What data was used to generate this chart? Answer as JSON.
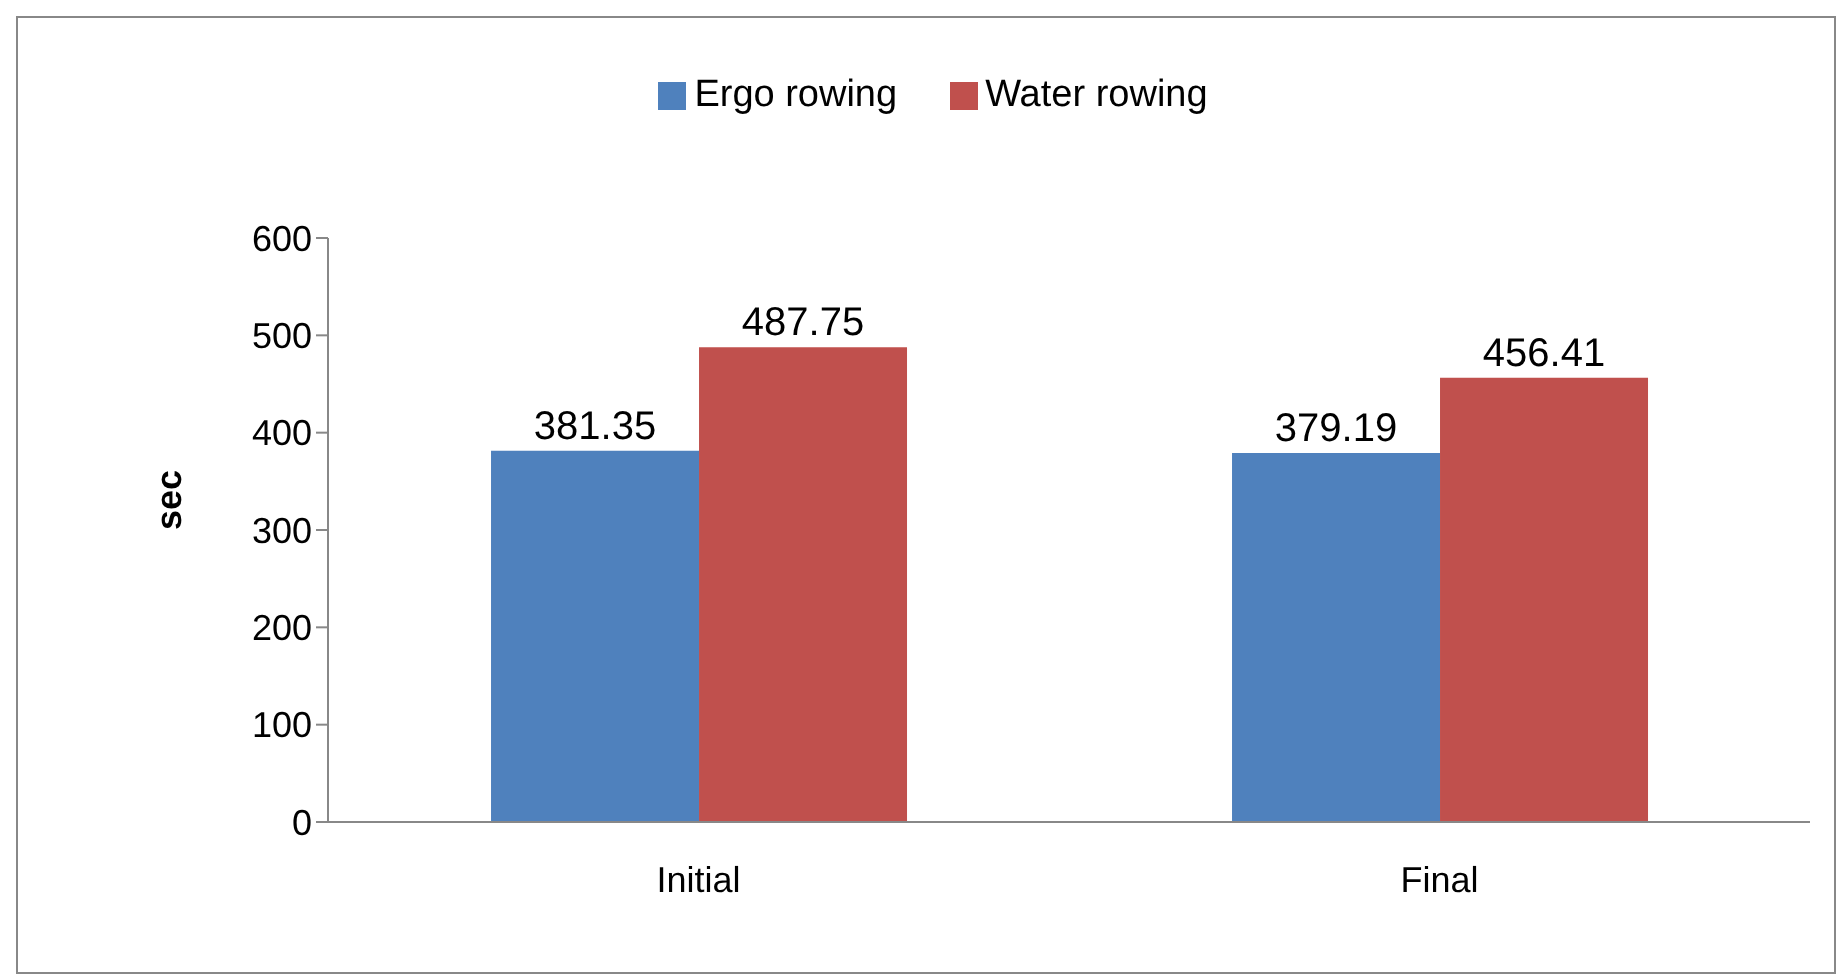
{
  "chart_data": {
    "type": "bar",
    "ylabel": "sec",
    "categories": [
      "Initial",
      "Final"
    ],
    "series": [
      {
        "name": "Ergo rowing",
        "color": "#4f81bd",
        "values": [
          381.35,
          379.19
        ]
      },
      {
        "name": "Water rowing",
        "color": "#c0504d",
        "values": [
          487.75,
          456.41
        ]
      }
    ],
    "ylim": [
      0,
      600
    ],
    "yticks": [
      0,
      100,
      200,
      300,
      400,
      500,
      600
    ],
    "grid": false,
    "legend": "top",
    "data_labels": true
  }
}
